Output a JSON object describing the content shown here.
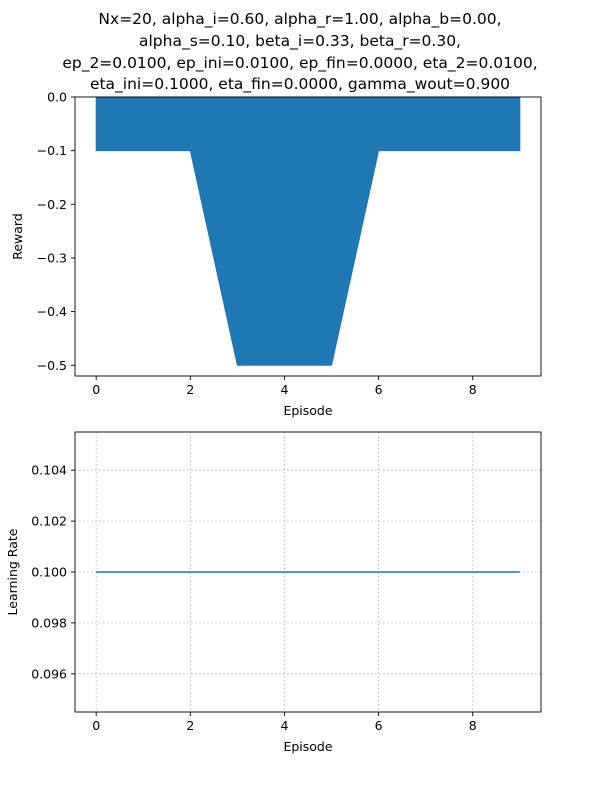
{
  "title_lines": [
    "Nx=20, alpha_i=0.60, alpha_r=1.00, alpha_b=0.00,",
    "alpha_s=0.10, beta_i=0.33, beta_r=0.30,",
    "ep_2=0.0100, ep_ini=0.0100, ep_fin=0.0000, eta_2=0.0100,",
    "eta_ini=0.1000, eta_fin=0.0000, gamma_wout=0.900"
  ],
  "chart_data": [
    {
      "type": "area",
      "xlabel": "Episode",
      "ylabel": "Reward",
      "x": [
        0,
        1,
        2,
        3,
        4,
        5,
        6,
        7,
        8,
        9
      ],
      "series": [
        {
          "values": [
            -0.1,
            -0.1,
            -0.1,
            -0.5,
            -0.5,
            -0.5,
            -0.1,
            -0.1,
            -0.1,
            -0.1
          ],
          "color": "#1f77b4"
        }
      ],
      "fill_to": 0,
      "xlim": [
        -0.45,
        9.45
      ],
      "ylim": [
        -0.52,
        0.0
      ],
      "xticks": [
        0,
        2,
        4,
        6,
        8
      ],
      "yticks": [
        0.0,
        -0.1,
        -0.2,
        -0.3,
        -0.4,
        -0.5
      ],
      "xtick_labels": [
        "0",
        "2",
        "4",
        "6",
        "8"
      ],
      "ytick_labels": [
        "0.0",
        "−0.1",
        "−0.2",
        "−0.3",
        "−0.4",
        "−0.5"
      ],
      "grid": false
    },
    {
      "type": "line",
      "xlabel": "Episode",
      "ylabel": "Learning Rate",
      "x": [
        0,
        1,
        2,
        3,
        4,
        5,
        6,
        7,
        8,
        9
      ],
      "series": [
        {
          "values": [
            0.1,
            0.1,
            0.1,
            0.1,
            0.1,
            0.1,
            0.1,
            0.1,
            0.1,
            0.1
          ],
          "color": "#1f77b4"
        }
      ],
      "xlim": [
        -0.45,
        9.45
      ],
      "ylim": [
        0.0945,
        0.1055
      ],
      "xticks": [
        0,
        2,
        4,
        6,
        8
      ],
      "yticks": [
        0.096,
        0.098,
        0.1,
        0.102,
        0.104
      ],
      "xtick_labels": [
        "0",
        "2",
        "4",
        "6",
        "8"
      ],
      "ytick_labels": [
        "0.096",
        "0.098",
        "0.100",
        "0.102",
        "0.104"
      ],
      "grid": true
    }
  ]
}
